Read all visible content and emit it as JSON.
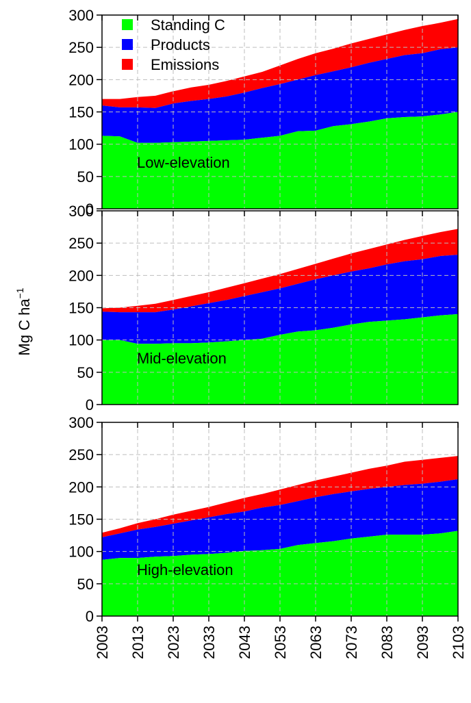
{
  "chart_data": {
    "type": "area",
    "stacked": true,
    "ylabel_main": "Mg C ha",
    "ylabel_sup": "−1",
    "ylim": [
      0,
      300
    ],
    "xlim": [
      2003,
      2103
    ],
    "x_ticks": [
      "2003",
      "2013",
      "2023",
      "2033",
      "2043",
      "2053",
      "2063",
      "2073",
      "2083",
      "2093",
      "2103"
    ],
    "y_ticks": [
      "0",
      "50",
      "100",
      "150",
      "200",
      "250",
      "300"
    ],
    "grid": true,
    "legend_position": "top-left",
    "colors": {
      "standing": "#00ff00",
      "products": "#0000ff",
      "emissions": "#ff0000"
    },
    "legend": [
      "Standing C",
      "Products",
      "Emissions"
    ],
    "x": [
      2003,
      2008,
      2013,
      2018,
      2023,
      2028,
      2033,
      2038,
      2043,
      2048,
      2053,
      2058,
      2063,
      2068,
      2073,
      2078,
      2083,
      2088,
      2093,
      2098,
      2103
    ],
    "panels": [
      {
        "label": "Low-elevation",
        "series": [
          {
            "name": "Standing C",
            "values": [
              113,
              112,
              102,
              102,
              103,
              104,
              105,
              106,
              107,
              110,
              113,
              120,
              121,
              128,
              131,
              135,
              140,
              142,
              143,
              146,
              150
            ]
          },
          {
            "name": "Products",
            "values": [
              160,
              157,
              157,
              156,
              163,
              167,
              170,
              174,
              180,
              187,
              193,
              200,
              207,
              213,
              219,
              226,
              232,
              238,
              241,
              247,
              250
            ]
          },
          {
            "name": "Emissions",
            "values": [
              170,
              170,
              173,
              175,
              182,
              188,
              192,
              198,
              205,
              212,
              222,
              232,
              241,
              248,
              256,
              263,
              270,
              277,
              283,
              288,
              294
            ]
          }
        ]
      },
      {
        "label": "Mid-elevation",
        "series": [
          {
            "name": "Standing C",
            "values": [
              100,
              100,
              94,
              94,
              95,
              95,
              96,
              98,
              100,
              102,
              108,
              113,
              115,
              119,
              124,
              128,
              130,
              132,
              135,
              138,
              140
            ]
          },
          {
            "name": "Products",
            "values": [
              144,
              143,
              143,
              143,
              147,
              152,
              157,
              162,
              168,
              174,
              180,
              187,
              194,
              200,
              206,
              211,
              217,
              222,
              225,
              230,
              232
            ]
          },
          {
            "name": "Emissions",
            "values": [
              149,
              150,
              153,
              156,
              162,
              168,
              174,
              181,
              188,
              195,
              202,
              210,
              218,
              226,
              234,
              241,
              248,
              255,
              261,
              267,
              272
            ]
          }
        ]
      },
      {
        "label": "High-elevation",
        "series": [
          {
            "name": "Standing C",
            "values": [
              87,
              90,
              90,
              92,
              93,
              95,
              96,
              98,
              101,
              102,
              104,
              110,
              113,
              116,
              120,
              123,
              126,
              126,
              126,
              128,
              132
            ]
          },
          {
            "name": "Products",
            "values": [
              122,
              128,
              134,
              138,
              143,
              148,
              153,
              158,
              162,
              168,
              172,
              178,
              184,
              189,
              193,
              197,
              200,
              203,
              205,
              208,
              212
            ]
          },
          {
            "name": "Emissions",
            "values": [
              129,
              136,
              144,
              150,
              157,
              163,
              169,
              176,
              183,
              189,
              196,
              203,
              210,
              216,
              222,
              228,
              233,
              239,
              242,
              245,
              248
            ]
          }
        ]
      }
    ]
  }
}
